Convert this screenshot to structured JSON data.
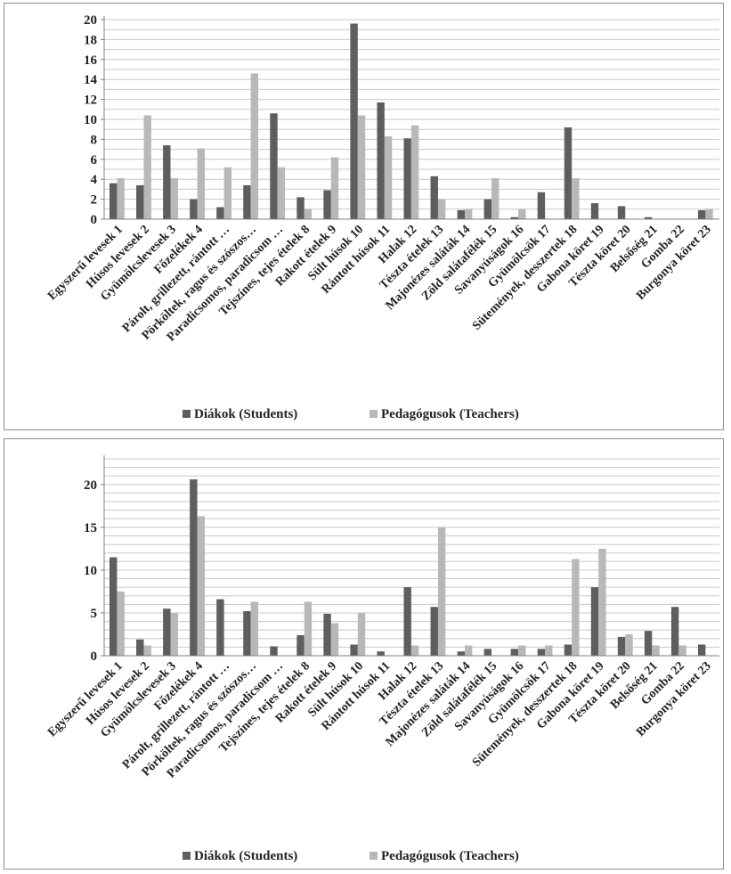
{
  "colors": {
    "students": "#5e5e5e",
    "teachers": "#b8b8b8",
    "grid": "#c8c8c8",
    "axis": "#808080"
  },
  "chart_data": [
    {
      "type": "bar",
      "categories": [
        "Egyszerű levesek 1",
        "Húsos levesek 2",
        "Gyümölcslevesek 3",
        "Főzelékek 4",
        "Párolt, grillezett, rántott …",
        "Pörköltek, ragus és szószos…",
        "Paradicsomos, paradicsom …",
        "Tejszínes, tejes ételek 8",
        "Rakott ételek 9",
        "Sült húsok 10",
        "Rántott húsok 11",
        "Halak 12",
        "Tészta ételek 13",
        "Majonézes saláták 14",
        "Zöld salátafélék 15",
        "Savanyúságok 16",
        "Gyümölcsök 17",
        "Sütemények, desszertek 18",
        "Gabona köret 19",
        "Tészta köret 20",
        "Belsőség 21",
        "Gomba 22",
        "Burgonya köret 23"
      ],
      "series": [
        {
          "name": "Diákok (Students)",
          "values": [
            3.6,
            3.4,
            7.4,
            2.0,
            1.2,
            3.4,
            10.6,
            2.2,
            2.9,
            19.6,
            11.7,
            8.1,
            4.3,
            0.9,
            2.0,
            0.2,
            2.7,
            9.2,
            1.6,
            1.3,
            0.2,
            0,
            0.9
          ]
        },
        {
          "name": "Pedagógusok (Teachers)",
          "values": [
            4.1,
            10.4,
            4.1,
            7.1,
            5.2,
            14.6,
            5.2,
            1.0,
            6.2,
            10.4,
            8.3,
            9.4,
            2.0,
            1.0,
            4.1,
            1.0,
            0,
            4.1,
            0,
            0,
            0,
            0,
            1.0
          ]
        }
      ],
      "ylim": [
        0,
        20
      ],
      "yticks": [
        "0",
        "2",
        "4",
        "6",
        "8",
        "10",
        "12",
        "14",
        "16",
        "18",
        "20"
      ],
      "grid": true,
      "legend_position": "bottom"
    },
    {
      "type": "bar",
      "categories": [
        "Egyszerű levesek 1",
        "Húsos levesek 2",
        "Gyümölcslevesek 3",
        "Főzelékek 4",
        "Párolt, grillezett, rántott …",
        "Pörköltek, ragus és szószos…",
        "Paradicsomos, paradicsom …",
        "Tejszínes, tejes ételek 8",
        "Rakott ételek 9",
        "Sült húsok 10",
        "Rántott húsok 11",
        "Halak 12",
        "Tészta ételek 13",
        "Majonézes saláták 14",
        "Zöld salátafélék 15",
        "Savanyúságok 16",
        "Gyümölcsök 17",
        "Sütemények, desszertek 18",
        "Gabona köret 19",
        "Tészta köret 20",
        "Belsőség 21",
        "Gomba 22",
        "Burgonya köret 23"
      ],
      "series": [
        {
          "name": "Diákok (Students)",
          "values": [
            11.5,
            1.9,
            5.5,
            20.6,
            6.6,
            5.2,
            1.1,
            2.4,
            4.9,
            1.3,
            0.5,
            8.0,
            5.7,
            0.5,
            0.8,
            0.8,
            0.8,
            1.3,
            8.0,
            2.2,
            2.9,
            5.7,
            1.3
          ]
        },
        {
          "name": "Pedagógusok (Teachers)",
          "values": [
            7.5,
            1.2,
            5.0,
            16.3,
            0,
            6.3,
            0,
            6.3,
            3.8,
            5.0,
            0,
            1.2,
            15.0,
            1.2,
            0,
            1.2,
            1.2,
            11.3,
            12.5,
            2.5,
            1.2,
            1.2,
            0
          ]
        }
      ],
      "ylim": [
        0,
        23
      ],
      "yticks": [
        "0",
        "5",
        "10",
        "15",
        "20"
      ],
      "ytick_values": [
        0,
        5,
        10,
        15,
        20
      ],
      "grid": true,
      "legend_position": "bottom"
    }
  ]
}
